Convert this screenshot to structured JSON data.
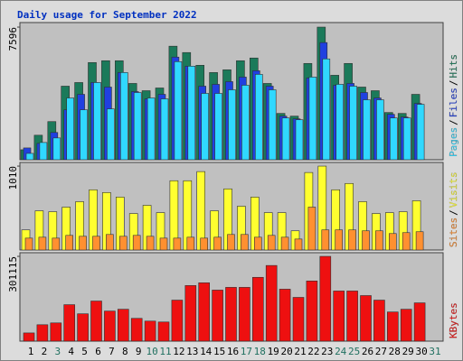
{
  "title": "Daily usage for September 2022",
  "chart_data": [
    {
      "type": "bar",
      "ylim": [
        0,
        7856
      ],
      "yticks": [
        7596
      ],
      "legend_separator": "/",
      "series": [
        {
          "name": "Hits",
          "color": "#1b7a5a",
          "values": [
            572,
            1405,
            2185,
            4214,
            4422,
            5567,
            5671,
            5671,
            4370,
            3954,
            4110,
            6503,
            6139,
            5411,
            4995,
            5151,
            5671,
            5827,
            4370,
            2653,
            2497,
            5515,
            7596,
            4838,
            5515,
            4162,
            3954,
            2705,
            2653,
            3746,
            null
          ]
        },
        {
          "name": "Files",
          "color": "#2040e0",
          "values": [
            676,
            936,
            1561,
            2861,
            3746,
            4422,
            4162,
            4995,
            3902,
            3486,
            3746,
            5879,
            5359,
            4214,
            4318,
            4474,
            4734,
            5099,
            4214,
            2497,
            2341,
            4682,
            6711,
            4266,
            4370,
            3850,
            3538,
            2601,
            2445,
            3225,
            null
          ]
        },
        {
          "name": "Pages",
          "color": "#30d8ff",
          "values": [
            364,
            988,
            1249,
            3538,
            2861,
            4422,
            2913,
            4995,
            3850,
            3538,
            3486,
            5619,
            5359,
            3798,
            3798,
            4006,
            4266,
            4890,
            4006,
            2393,
            2289,
            4734,
            5775,
            4318,
            4214,
            3434,
            3434,
            2393,
            2393,
            3173,
            null
          ]
        }
      ]
    },
    {
      "type": "bar",
      "ylim": [
        0,
        1054
      ],
      "yticks": [
        1010
      ],
      "legend_separator": "/",
      "series": [
        {
          "name": "Visits",
          "color": "#ffff30",
          "values": [
            242,
            472,
            461,
            516,
            582,
            725,
            692,
            637,
            439,
            538,
            450,
            834,
            834,
            944,
            472,
            736,
            527,
            637,
            450,
            450,
            231,
            933,
            1010,
            725,
            801,
            582,
            439,
            450,
            461,
            593,
            null
          ]
        },
        {
          "name": "Sites",
          "color": "#ff9030",
          "values": [
            143,
            154,
            143,
            176,
            165,
            165,
            187,
            165,
            176,
            165,
            143,
            143,
            154,
            143,
            154,
            187,
            187,
            154,
            176,
            154,
            132,
            516,
            242,
            242,
            242,
            231,
            231,
            198,
            209,
            220,
            null
          ]
        }
      ]
    },
    {
      "type": "bar",
      "ylim": [
        0,
        314066
      ],
      "yticks": [
        301115
      ],
      "categories": [
        "1",
        "2",
        "3",
        "4",
        "5",
        "6",
        "7",
        "8",
        "9",
        "10",
        "11",
        "12",
        "13",
        "14",
        "15",
        "16",
        "17",
        "18",
        "19",
        "20",
        "21",
        "22",
        "23",
        "24",
        "25",
        "26",
        "27",
        "28",
        "29",
        "30",
        "31"
      ],
      "category_colors": [
        "#000",
        "#000",
        "#207060",
        "#000",
        "#000",
        "#000",
        "#000",
        "#000",
        "#000",
        "#207060",
        "#207060",
        "#000",
        "#000",
        "#000",
        "#000",
        "#000",
        "#207060",
        "#207060",
        "#000",
        "#000",
        "#000",
        "#000",
        "#000",
        "#207060",
        "#207060",
        "#000",
        "#000",
        "#000",
        "#000",
        "#000",
        "#207060"
      ],
      "series": [
        {
          "name": "KBytes",
          "color": "#ee1010",
          "values": [
            29140,
            58280,
            64756,
            129512,
            97134,
            142464,
            106848,
            113323,
            80945,
            71232,
            67994,
            145702,
            197506,
            207219,
            181318,
            191032,
            191032,
            226647,
            268737,
            184556,
            155416,
            213695,
            301115,
            178080,
            178080,
            161892,
            145702,
            103610,
            113323,
            135989,
            null
          ]
        }
      ]
    }
  ]
}
